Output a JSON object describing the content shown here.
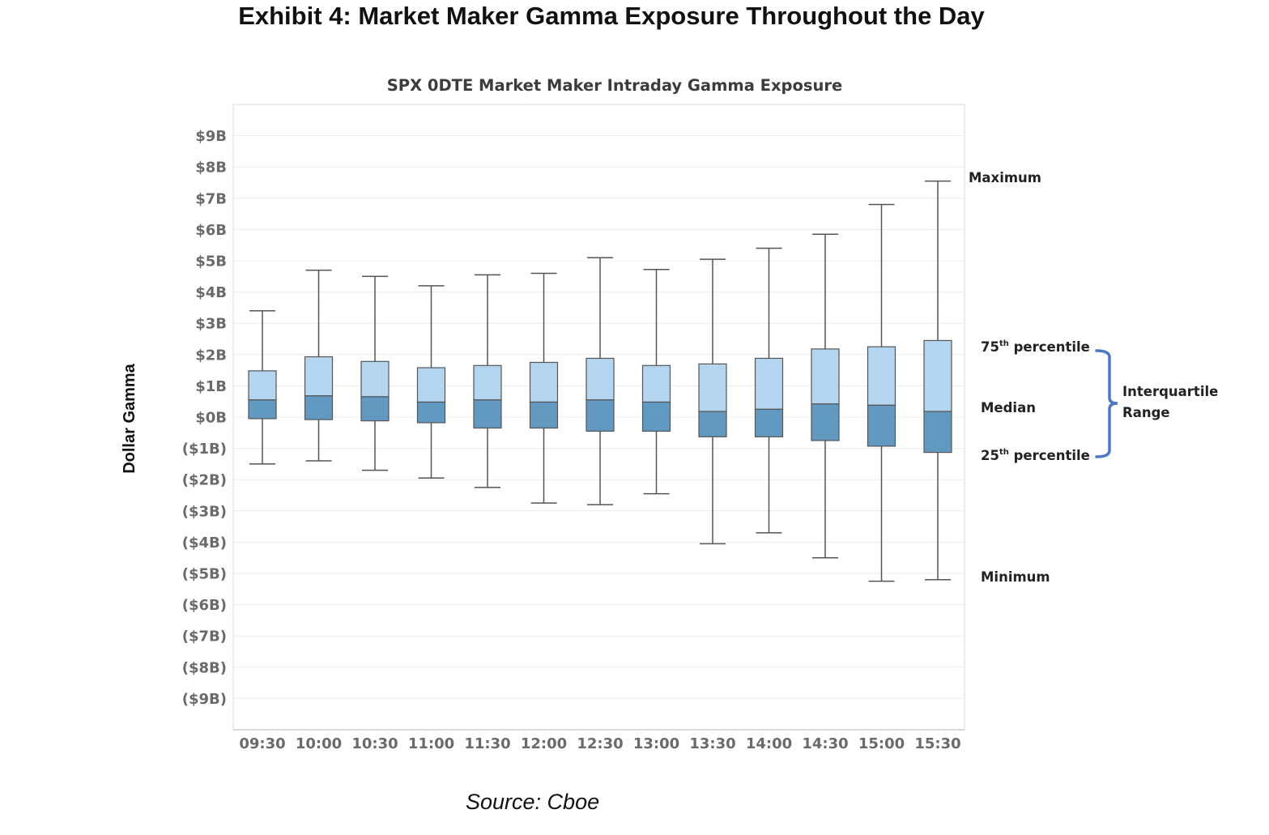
{
  "exhibit_title": "Exhibit 4: Market Maker Gamma Exposure Throughout the Day",
  "source": "Source: Cboe",
  "chart_data": {
    "type": "boxplot",
    "title": "SPX 0DTE Market Maker Intraday Gamma Exposure",
    "ylabel": "Dollar Gamma",
    "xlabel": "",
    "ylim": [
      -10,
      9.5
    ],
    "y_ticks": [
      9,
      8,
      7,
      6,
      5,
      4,
      3,
      2,
      1,
      0,
      -1,
      -2,
      -3,
      -4,
      -5,
      -6,
      -7,
      -8,
      -9
    ],
    "y_tick_labels": [
      "$9B",
      "$8B",
      "$7B",
      "$6B",
      "$5B",
      "$4B",
      "$3B",
      "$2B",
      "$1B",
      "$0B",
      "($1B)",
      "($2B)",
      "($3B)",
      "($4B)",
      "($5B)",
      "($6B)",
      "($7B)",
      "($8B)",
      "($9B)"
    ],
    "grid": true,
    "categories": [
      "09:30",
      "10:00",
      "10:30",
      "11:00",
      "11:30",
      "12:00",
      "12:30",
      "13:00",
      "13:30",
      "14:00",
      "14:30",
      "15:00",
      "15:30"
    ],
    "min": [
      -1.5,
      -1.4,
      -1.7,
      -1.95,
      -2.25,
      -2.75,
      -2.8,
      -2.45,
      -4.05,
      -3.7,
      -4.5,
      -5.25,
      -5.2
    ],
    "q1": [
      -0.05,
      -0.08,
      -0.12,
      -0.18,
      -0.35,
      -0.35,
      -0.45,
      -0.45,
      -0.63,
      -0.63,
      -0.75,
      -0.93,
      -1.13
    ],
    "median": [
      0.55,
      0.68,
      0.65,
      0.48,
      0.55,
      0.48,
      0.55,
      0.48,
      0.18,
      0.25,
      0.42,
      0.38,
      0.18
    ],
    "q3": [
      1.48,
      1.93,
      1.78,
      1.58,
      1.65,
      1.75,
      1.88,
      1.65,
      1.7,
      1.88,
      2.18,
      2.25,
      2.45
    ],
    "max": [
      3.4,
      4.7,
      4.5,
      4.2,
      4.55,
      4.6,
      5.1,
      4.72,
      5.05,
      5.4,
      5.85,
      6.8,
      7.55
    ],
    "colors": {
      "upper_box": "#b3d5f0",
      "lower_box": "#6299c1",
      "whisker": "#555555",
      "bracket": "#4a78c7",
      "grid": "#ececec"
    },
    "annotations": {
      "maximum": "Maximum",
      "p75_num": "75",
      "p75_sup": "th",
      "p75_word": " percentile",
      "median": "Median",
      "p25_num": "25",
      "p25_sup": "th",
      "p25_word": " percentile",
      "iqr_line1": "Interquartile",
      "iqr_line2": "Range",
      "minimum": "Minimum"
    }
  }
}
